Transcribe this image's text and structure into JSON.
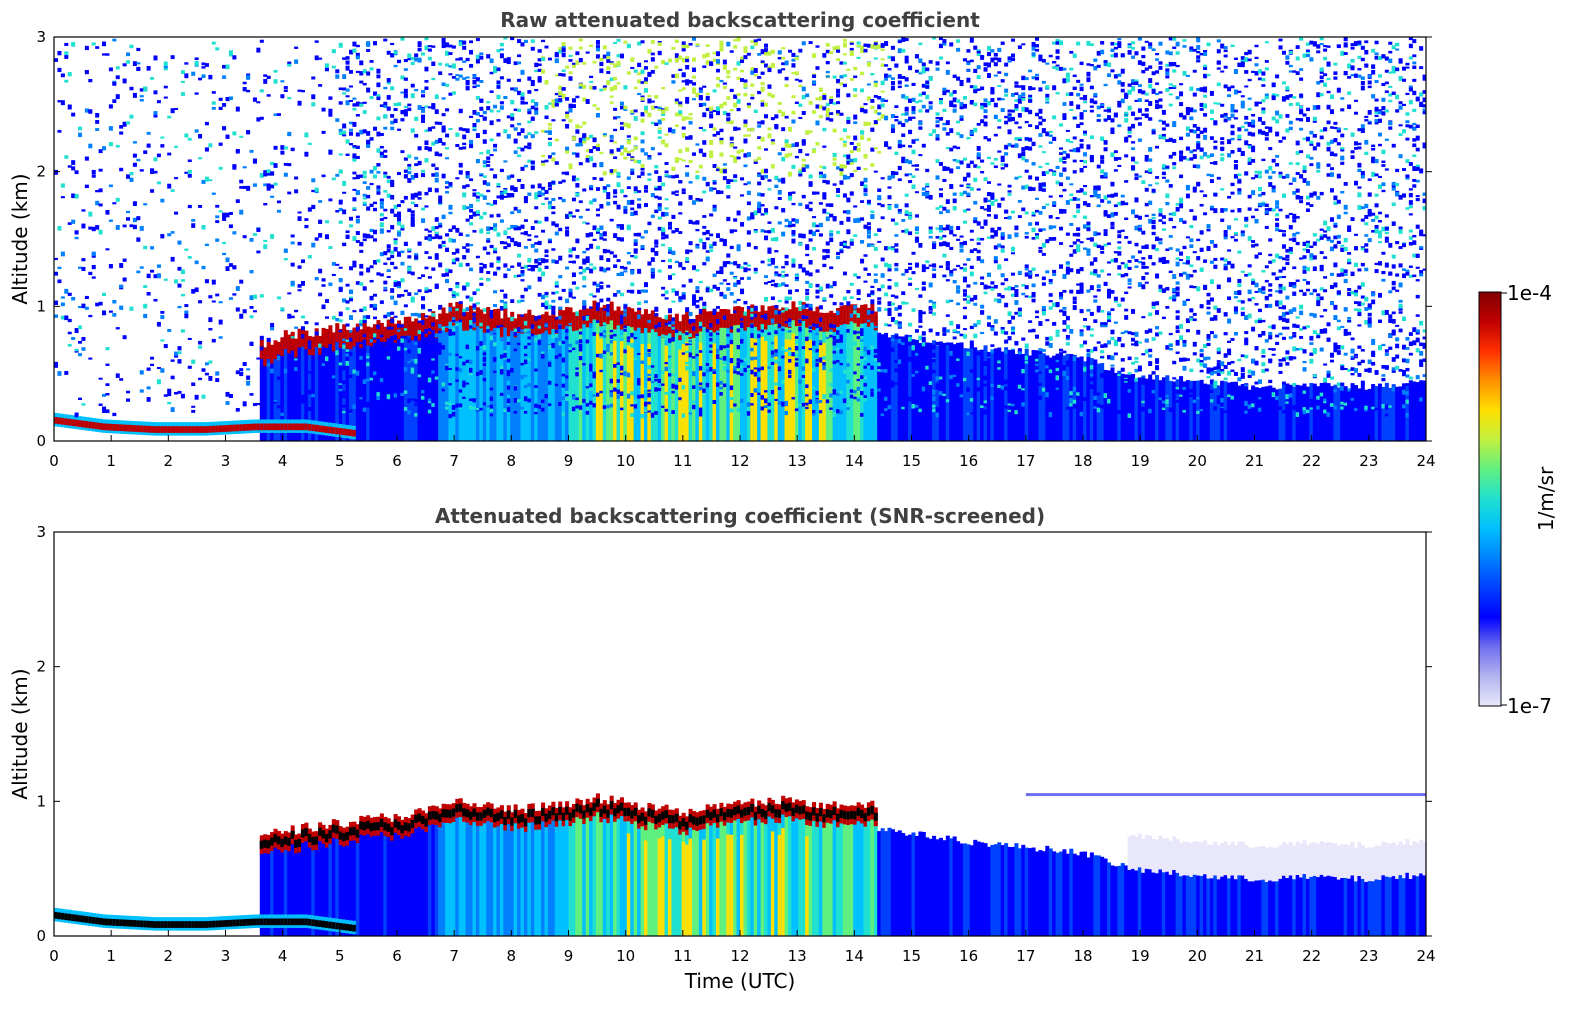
{
  "chart_data": [
    {
      "type": "heatmap",
      "title": "Raw attenuated backscattering coefficient",
      "xlabel": "",
      "ylabel": "Altitude (km)",
      "xlim": [
        0,
        24
      ],
      "ylim": [
        0,
        3
      ],
      "x_ticks": [
        "0",
        "1",
        "2",
        "3",
        "4",
        "5",
        "6",
        "7",
        "8",
        "9",
        "10",
        "11",
        "12",
        "13",
        "14",
        "15",
        "16",
        "17",
        "18",
        "19",
        "20",
        "21",
        "22",
        "23",
        "24"
      ],
      "y_ticks": [
        "0",
        "1",
        "2",
        "3"
      ],
      "layers": [
        {
          "name": "low aerosol/cloud layer",
          "x_start": 0,
          "x_end": 5.3,
          "altitude_km": [
            0.15,
            0.1,
            0.08,
            0.08,
            0.1,
            0.1,
            0.05
          ]
        },
        {
          "name": "cloud top layer",
          "x": [
            3.6,
            4,
            5,
            6,
            6.7,
            7,
            8,
            9,
            9.5,
            10,
            11,
            11.5,
            12,
            13,
            13.5,
            14,
            14.4
          ],
          "altitude_km": [
            0.68,
            0.74,
            0.8,
            0.85,
            0.9,
            0.96,
            0.9,
            0.93,
            0.98,
            0.95,
            0.88,
            0.92,
            0.95,
            0.97,
            0.93,
            0.95,
            0.95
          ]
        },
        {
          "name": "boundary layer top",
          "x": [
            14.4,
            16,
            18,
            18.8,
            20,
            21,
            22,
            23,
            24
          ],
          "altitude_km": [
            0.8,
            0.7,
            0.62,
            0.48,
            0.45,
            0.4,
            0.42,
            0.4,
            0.45
          ]
        }
      ]
    },
    {
      "type": "heatmap",
      "title": "Attenuated backscattering coefficient (SNR-screened)",
      "xlabel": "Time (UTC)",
      "ylabel": "Altitude (km)",
      "xlim": [
        0,
        24
      ],
      "ylim": [
        0,
        3
      ],
      "x_ticks": [
        "0",
        "1",
        "2",
        "3",
        "4",
        "5",
        "6",
        "7",
        "8",
        "9",
        "10",
        "11",
        "12",
        "13",
        "14",
        "15",
        "16",
        "17",
        "18",
        "19",
        "20",
        "21",
        "22",
        "23",
        "24"
      ],
      "y_ticks": [
        "0",
        "1",
        "2",
        "3"
      ],
      "layers": [
        {
          "name": "low aerosol/cloud layer",
          "x_start": 0,
          "x_end": 5.3,
          "altitude_km": [
            0.15,
            0.1,
            0.08,
            0.08,
            0.1,
            0.1,
            0.05
          ]
        },
        {
          "name": "cloud top layer",
          "x": [
            3.6,
            4,
            5,
            6,
            6.7,
            7,
            8,
            9,
            9.5,
            10,
            11,
            11.5,
            12,
            13,
            13.5,
            14,
            14.4
          ],
          "altitude_km": [
            0.68,
            0.74,
            0.8,
            0.85,
            0.9,
            0.96,
            0.9,
            0.93,
            0.98,
            0.95,
            0.88,
            0.92,
            0.95,
            0.97,
            0.93,
            0.95,
            0.95
          ]
        },
        {
          "name": "thin layer",
          "x_start": 17,
          "x_end": 24,
          "altitude_km": 1.05
        },
        {
          "name": "boundary layer top",
          "x": [
            14.4,
            16,
            18,
            18.8,
            20,
            21,
            22,
            23,
            24
          ],
          "altitude_km": [
            0.8,
            0.7,
            0.62,
            0.5,
            0.45,
            0.42,
            0.44,
            0.42,
            0.46
          ]
        }
      ]
    }
  ],
  "colorbar": {
    "label": "1/m/sr",
    "max_label": "1e-4",
    "min_label": "1e-7",
    "colors": [
      "#e8e8fa",
      "#b4b4f0",
      "#6f6fee",
      "#0000ff",
      "#0040ff",
      "#0080ff",
      "#00c0ff",
      "#20e0d0",
      "#60f080",
      "#c0f040",
      "#ffe000",
      "#ff9000",
      "#ff3000",
      "#c00000",
      "#800000"
    ]
  }
}
